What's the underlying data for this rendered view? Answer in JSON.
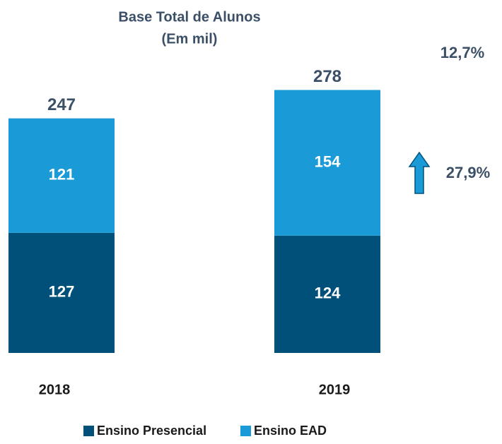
{
  "chart_data": {
    "type": "stacked_bar",
    "title": "Base Total de Alunos",
    "subtitle": "(Em mil)",
    "categories": [
      "2018",
      "2019"
    ],
    "series": [
      {
        "name": "Ensino Presencial",
        "color": "#00507a",
        "values": [
          127,
          124
        ]
      },
      {
        "name": "Ensino EAD",
        "color": "#1a9ad6",
        "values": [
          121,
          154
        ]
      }
    ],
    "totals": [
      247,
      278
    ],
    "annotations": [
      "12,7%",
      "27,9%"
    ],
    "legend": "bottom"
  }
}
